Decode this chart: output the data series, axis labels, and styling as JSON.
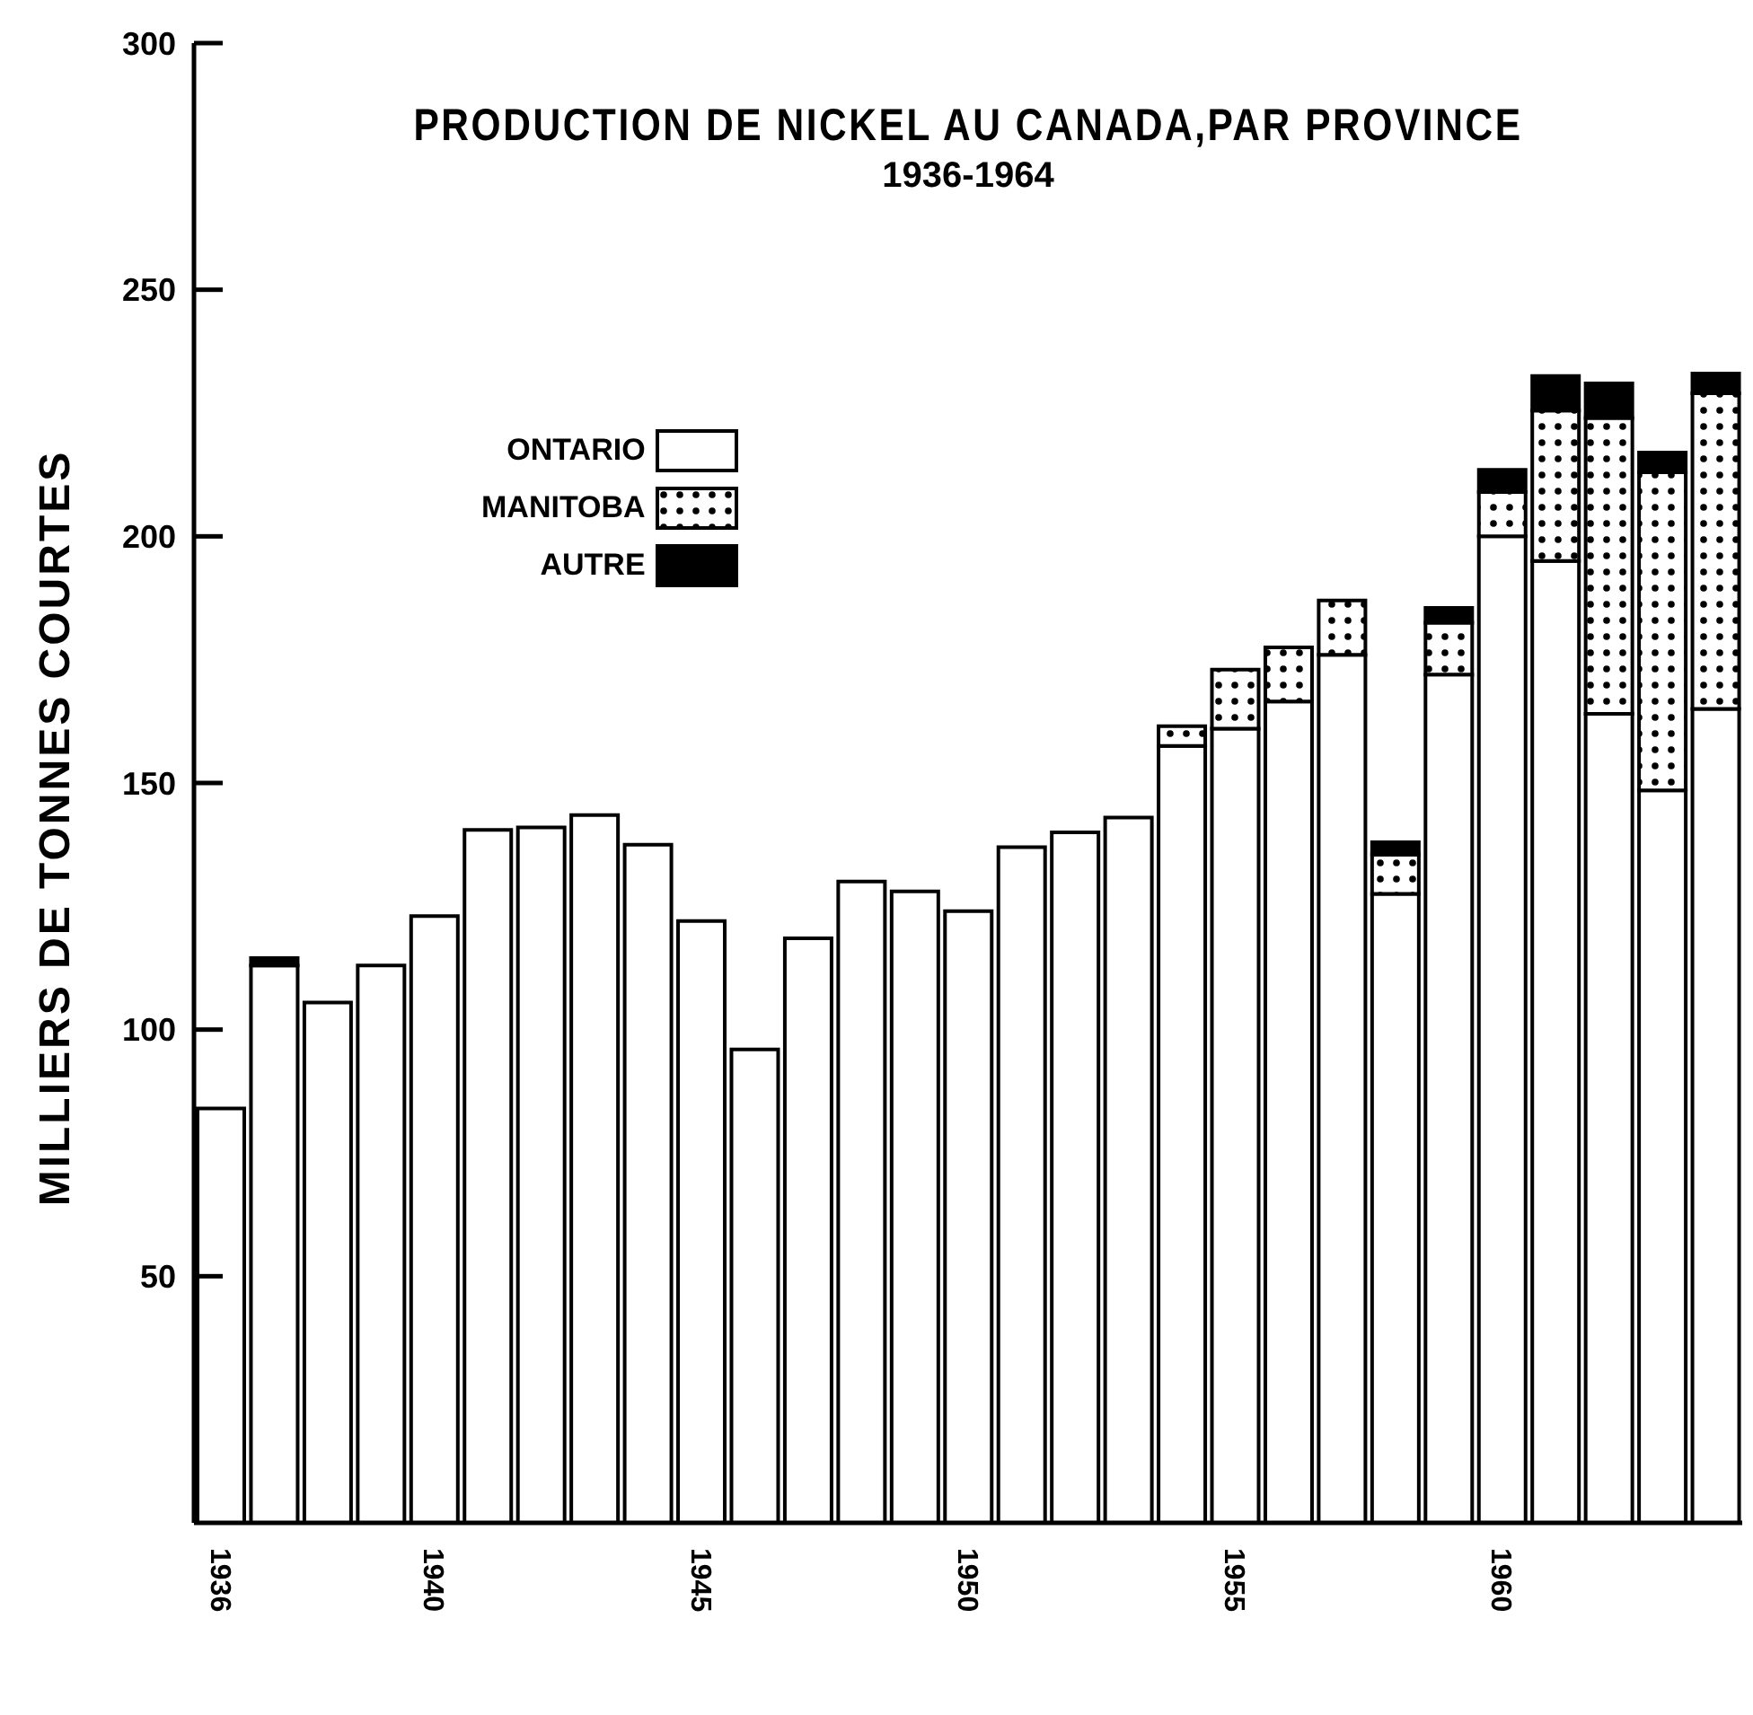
{
  "chart_data": {
    "type": "bar",
    "title": "PRODUCTION DE NICKEL AU CANADA,PAR PROVINCE",
    "subtitle": "1936-1964",
    "ylabel": "MILLIERS DE TONNES COURTES",
    "categories": [
      "1936",
      null,
      null,
      null,
      "1940",
      null,
      null,
      null,
      null,
      "1945",
      null,
      null,
      null,
      null,
      "1950",
      null,
      null,
      null,
      null,
      "1955",
      null,
      null,
      null,
      null,
      "1960",
      null,
      null,
      null,
      null
    ],
    "series": [
      {
        "name": "ONTARIO",
        "color": "#ffffff",
        "values": [
          84,
          113,
          105.5,
          113,
          123,
          140.5,
          141,
          143.5,
          137.5,
          122,
          96,
          118.5,
          130,
          128,
          124,
          137,
          140,
          143,
          157.5,
          161,
          166.5,
          176,
          127.5,
          172,
          200,
          195,
          164,
          148.5,
          165
        ]
      },
      {
        "name": "MANITOBA",
        "color": "#000000",
        "values": [
          null,
          null,
          null,
          null,
          null,
          null,
          null,
          null,
          null,
          null,
          null,
          null,
          null,
          null,
          null,
          null,
          null,
          null,
          4,
          12,
          11,
          11,
          8,
          10.5,
          9,
          30.5,
          60,
          64.5,
          64
        ]
      },
      {
        "name": "AUTRE",
        "color": "#000000",
        "values": [
          null,
          1.5,
          null,
          null,
          null,
          null,
          null,
          null,
          null,
          null,
          null,
          null,
          null,
          null,
          null,
          null,
          null,
          null,
          null,
          null,
          null,
          null,
          2.5,
          3,
          4.5,
          7,
          7,
          4,
          4
        ]
      }
    ],
    "stacked": true,
    "ylim": [
      0,
      300
    ],
    "yticks": [
      50,
      100,
      150,
      200,
      250,
      300
    ],
    "grid": false,
    "legend": "top left"
  }
}
